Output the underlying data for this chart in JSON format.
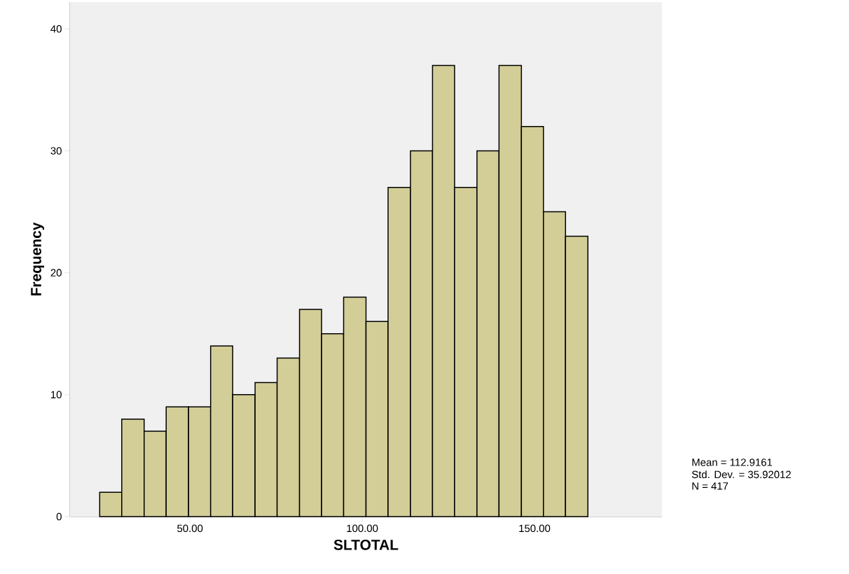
{
  "chart_data": {
    "type": "histogram",
    "xlabel": "SLTOTAL",
    "ylabel": "Frequency",
    "bins": [
      23.8,
      30.2,
      36.7,
      43.1,
      49.6,
      56.0,
      62.4,
      68.9,
      75.3,
      81.8,
      88.2,
      94.6,
      101.1,
      107.5,
      114.0,
      120.4,
      126.8,
      133.3,
      139.7,
      146.2,
      152.6,
      159.0,
      165.5
    ],
    "values": [
      2,
      8,
      7,
      9,
      9,
      14,
      10,
      11,
      13,
      17,
      15,
      18,
      16,
      27,
      30,
      37,
      27,
      30,
      37,
      32,
      25,
      23
    ],
    "color": "#d3ce97",
    "xlim": [
      15.2,
      187
    ],
    "ylim": [
      0,
      42.2
    ],
    "xticks": [
      {
        "value": 50,
        "label": "50.00"
      },
      {
        "value": 100,
        "label": "100.00"
      },
      {
        "value": 150,
        "label": "150.00"
      }
    ],
    "yticks": [
      0,
      10,
      20,
      30,
      40
    ],
    "grid": false,
    "annotations": [
      "Mean = 112.9161",
      "Std. Dev. = 35.92012",
      "N = 417"
    ]
  }
}
